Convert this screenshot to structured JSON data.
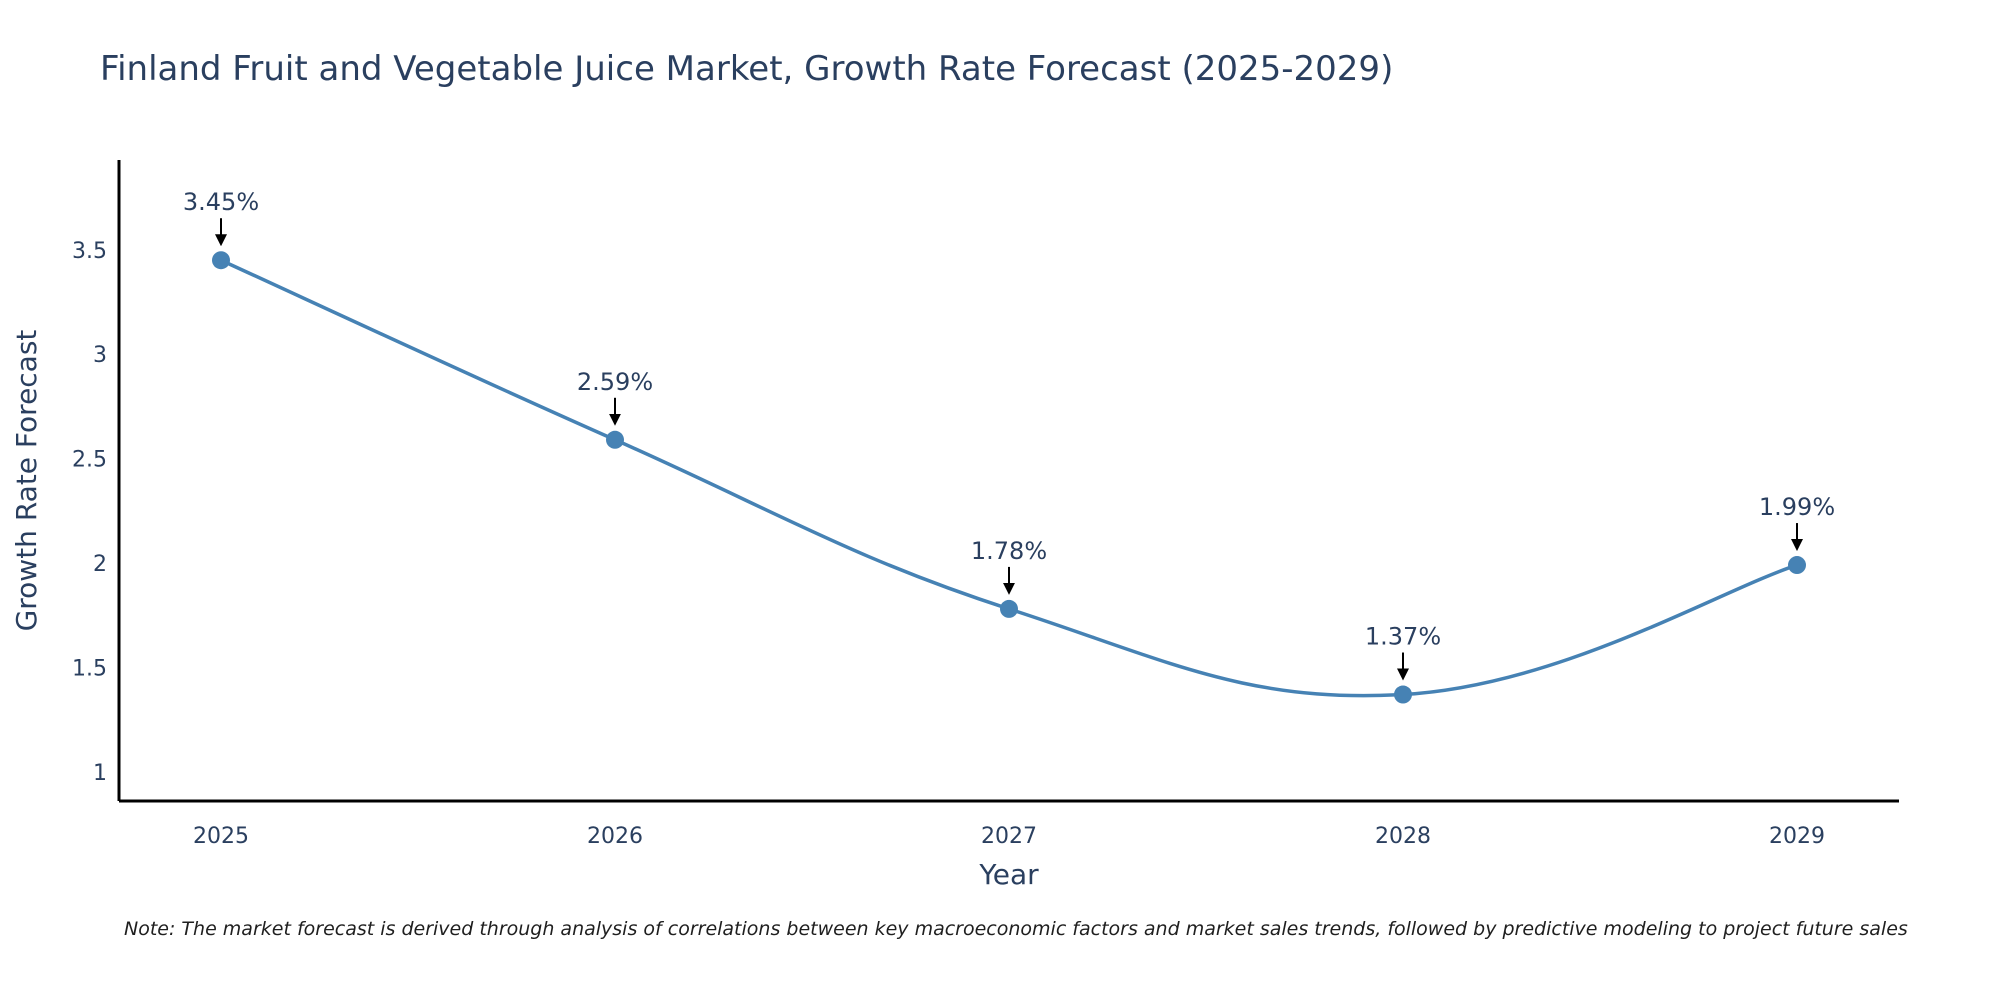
{
  "chart_data": {
    "type": "line",
    "title": "Finland Fruit and Vegetable Juice Market, Growth Rate Forecast (2025-2029)",
    "xlabel": "Year",
    "ylabel": "Growth Rate Forecast",
    "categories": [
      "2025",
      "2026",
      "2027",
      "2028",
      "2029"
    ],
    "series": [
      {
        "name": "Growth Rate Forecast",
        "values": [
          3.45,
          2.59,
          1.78,
          1.37,
          1.99
        ]
      }
    ],
    "data_labels": [
      "3.45%",
      "2.59%",
      "1.78%",
      "1.37%",
      "1.99%"
    ],
    "yticks": [
      1,
      1.5,
      2,
      2.5,
      3,
      3.5
    ],
    "ytick_labels": [
      "1",
      "1.5",
      "2",
      "2.5",
      "3",
      "3.5"
    ],
    "ylim": [
      0.86,
      3.93
    ],
    "grid": false,
    "line_color": "#4682B4"
  },
  "note": "Note: The market forecast is derived through analysis of correlations between key macroeconomic factors and market sales trends, followed by predictive modeling to project future sales"
}
